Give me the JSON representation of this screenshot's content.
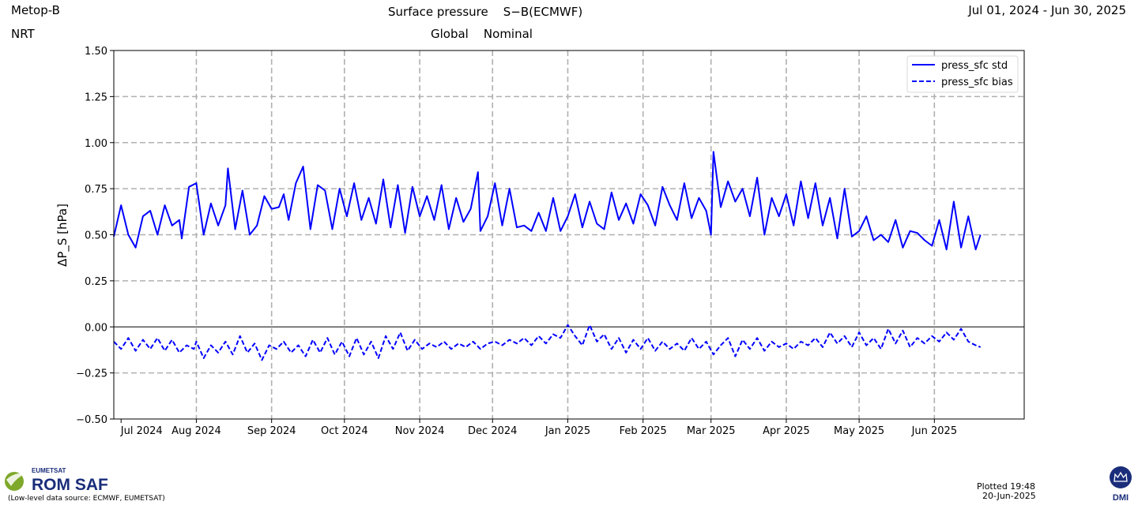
{
  "header": {
    "satellite": "Metop-B",
    "mode": "NRT",
    "title": "Surface pressure    S−B(ECMWF)",
    "subtitle": "Global    Nominal",
    "date_range": "Jul 01, 2024 - Jun 30, 2025"
  },
  "footer": {
    "org_small": "EUMETSAT",
    "org_name": "ROM SAF",
    "source_note": "(Low-level data source: ECMWF, EUMETSAT)",
    "plotted_line1": "Plotted 19:48",
    "plotted_line2": "20-Jun-2025",
    "dmi_label": "DMI"
  },
  "colors": {
    "series": "#0000ff",
    "grid": "#b0b0b0",
    "zero_line": "#000000",
    "logo_green": "#7ea82a",
    "logo_blue": "#1a2d7a"
  },
  "chart_data": {
    "type": "line",
    "ylabel": "ΔP_S  [hPa]",
    "ylim": [
      -0.5,
      1.5
    ],
    "yticks": [
      -0.5,
      -0.25,
      0.0,
      0.25,
      0.5,
      0.75,
      1.0,
      1.25,
      1.5
    ],
    "ytick_labels": [
      "−0.50",
      "−0.25",
      "0.00",
      "0.25",
      "0.50",
      "0.75",
      "1.00",
      "1.25",
      "1.50"
    ],
    "xlim": [
      "2024-06-28",
      "2025-07-08"
    ],
    "xticks": [
      "2024-07-01",
      "2024-08-01",
      "2024-09-01",
      "2024-10-01",
      "2024-11-01",
      "2024-12-01",
      "2025-01-01",
      "2025-02-01",
      "2025-03-01",
      "2025-04-01",
      "2025-05-01",
      "2025-06-01"
    ],
    "xtick_labels": [
      "Jul 2024",
      "Aug 2024",
      "Sep 2024",
      "Oct 2024",
      "Nov 2024",
      "Dec 2024",
      "Jan 2025",
      "Feb 2025",
      "Mar 2025",
      "Apr 2025",
      "May 2025",
      "Jun 2025"
    ],
    "grid": true,
    "zero_line": true,
    "legend_position": "top-right",
    "series": [
      {
        "name": "press_sfc std",
        "style": "solid",
        "x": [
          "2024-06-28",
          "2024-07-01",
          "2024-07-04",
          "2024-07-07",
          "2024-07-10",
          "2024-07-13",
          "2024-07-16",
          "2024-07-19",
          "2024-07-22",
          "2024-07-25",
          "2024-07-26",
          "2024-07-29",
          "2024-08-01",
          "2024-08-04",
          "2024-08-07",
          "2024-08-10",
          "2024-08-13",
          "2024-08-14",
          "2024-08-17",
          "2024-08-20",
          "2024-08-23",
          "2024-08-26",
          "2024-08-29",
          "2024-09-01",
          "2024-09-04",
          "2024-09-06",
          "2024-09-08",
          "2024-09-11",
          "2024-09-14",
          "2024-09-17",
          "2024-09-20",
          "2024-09-23",
          "2024-09-26",
          "2024-09-29",
          "2024-10-02",
          "2024-10-05",
          "2024-10-08",
          "2024-10-11",
          "2024-10-14",
          "2024-10-17",
          "2024-10-20",
          "2024-10-23",
          "2024-10-26",
          "2024-10-29",
          "2024-11-01",
          "2024-11-04",
          "2024-11-07",
          "2024-11-10",
          "2024-11-13",
          "2024-11-16",
          "2024-11-19",
          "2024-11-22",
          "2024-11-25",
          "2024-11-26",
          "2024-11-29",
          "2024-12-02",
          "2024-12-05",
          "2024-12-08",
          "2024-12-11",
          "2024-12-14",
          "2024-12-17",
          "2024-12-20",
          "2024-12-23",
          "2024-12-26",
          "2024-12-29",
          "2025-01-01",
          "2025-01-04",
          "2025-01-07",
          "2025-01-10",
          "2025-01-13",
          "2025-01-16",
          "2025-01-19",
          "2025-01-22",
          "2025-01-25",
          "2025-01-28",
          "2025-01-31",
          "2025-02-03",
          "2025-02-06",
          "2025-02-09",
          "2025-02-12",
          "2025-02-15",
          "2025-02-18",
          "2025-02-21",
          "2025-02-24",
          "2025-02-27",
          "2025-03-01",
          "2025-03-02",
          "2025-03-05",
          "2025-03-08",
          "2025-03-11",
          "2025-03-14",
          "2025-03-17",
          "2025-03-20",
          "2025-03-23",
          "2025-03-26",
          "2025-03-29",
          "2025-04-01",
          "2025-04-04",
          "2025-04-07",
          "2025-04-10",
          "2025-04-13",
          "2025-04-16",
          "2025-04-19",
          "2025-04-22",
          "2025-04-25",
          "2025-04-28",
          "2025-05-01",
          "2025-05-04",
          "2025-05-07",
          "2025-05-10",
          "2025-05-13",
          "2025-05-16",
          "2025-05-19",
          "2025-05-22",
          "2025-05-25",
          "2025-05-28",
          "2025-05-31",
          "2025-06-03",
          "2025-06-06",
          "2025-06-09",
          "2025-06-12",
          "2025-06-15",
          "2025-06-18",
          "2025-06-20"
        ],
        "values": [
          0.49,
          0.66,
          0.5,
          0.43,
          0.6,
          0.63,
          0.5,
          0.66,
          0.55,
          0.58,
          0.48,
          0.76,
          0.78,
          0.5,
          0.67,
          0.55,
          0.66,
          0.86,
          0.53,
          0.74,
          0.5,
          0.55,
          0.71,
          0.64,
          0.65,
          0.72,
          0.58,
          0.78,
          0.87,
          0.53,
          0.77,
          0.74,
          0.53,
          0.75,
          0.6,
          0.78,
          0.58,
          0.7,
          0.56,
          0.8,
          0.54,
          0.77,
          0.51,
          0.76,
          0.6,
          0.71,
          0.58,
          0.77,
          0.53,
          0.7,
          0.57,
          0.64,
          0.84,
          0.52,
          0.6,
          0.78,
          0.55,
          0.75,
          0.54,
          0.55,
          0.52,
          0.62,
          0.52,
          0.7,
          0.52,
          0.6,
          0.72,
          0.54,
          0.68,
          0.56,
          0.53,
          0.73,
          0.58,
          0.67,
          0.56,
          0.72,
          0.66,
          0.55,
          0.76,
          0.66,
          0.58,
          0.78,
          0.59,
          0.7,
          0.63,
          0.5,
          0.95,
          0.65,
          0.79,
          0.68,
          0.75,
          0.6,
          0.81,
          0.5,
          0.7,
          0.6,
          0.72,
          0.55,
          0.79,
          0.59,
          0.78,
          0.55,
          0.7,
          0.48,
          0.75,
          0.49,
          0.52,
          0.6,
          0.47,
          0.5,
          0.46,
          0.58,
          0.43,
          0.52,
          0.51,
          0.47,
          0.44,
          0.58,
          0.42,
          0.68,
          0.43,
          0.6,
          0.42,
          0.5
        ]
      },
      {
        "name": "press_sfc bias",
        "style": "dashed",
        "x": [
          "2024-06-28",
          "2024-07-01",
          "2024-07-04",
          "2024-07-07",
          "2024-07-10",
          "2024-07-13",
          "2024-07-16",
          "2024-07-19",
          "2024-07-22",
          "2024-07-25",
          "2024-07-28",
          "2024-07-31",
          "2024-08-01",
          "2024-08-04",
          "2024-08-07",
          "2024-08-10",
          "2024-08-13",
          "2024-08-16",
          "2024-08-19",
          "2024-08-22",
          "2024-08-25",
          "2024-08-28",
          "2024-08-31",
          "2024-09-03",
          "2024-09-06",
          "2024-09-09",
          "2024-09-12",
          "2024-09-15",
          "2024-09-18",
          "2024-09-21",
          "2024-09-24",
          "2024-09-27",
          "2024-09-30",
          "2024-10-03",
          "2024-10-06",
          "2024-10-09",
          "2024-10-12",
          "2024-10-15",
          "2024-10-18",
          "2024-10-21",
          "2024-10-24",
          "2024-10-27",
          "2024-10-30",
          "2024-11-02",
          "2024-11-05",
          "2024-11-08",
          "2024-11-11",
          "2024-11-14",
          "2024-11-17",
          "2024-11-20",
          "2024-11-23",
          "2024-11-26",
          "2024-11-29",
          "2024-12-02",
          "2024-12-05",
          "2024-12-08",
          "2024-12-11",
          "2024-12-14",
          "2024-12-17",
          "2024-12-20",
          "2024-12-23",
          "2024-12-26",
          "2024-12-29",
          "2025-01-01",
          "2025-01-04",
          "2025-01-07",
          "2025-01-10",
          "2025-01-13",
          "2025-01-16",
          "2025-01-19",
          "2025-01-22",
          "2025-01-25",
          "2025-01-28",
          "2025-01-31",
          "2025-02-03",
          "2025-02-06",
          "2025-02-09",
          "2025-02-12",
          "2025-02-15",
          "2025-02-18",
          "2025-02-21",
          "2025-02-24",
          "2025-02-27",
          "2025-03-02",
          "2025-03-05",
          "2025-03-08",
          "2025-03-11",
          "2025-03-14",
          "2025-03-17",
          "2025-03-20",
          "2025-03-23",
          "2025-03-26",
          "2025-03-29",
          "2025-04-01",
          "2025-04-04",
          "2025-04-07",
          "2025-04-10",
          "2025-04-13",
          "2025-04-16",
          "2025-04-19",
          "2025-04-22",
          "2025-04-25",
          "2025-04-28",
          "2025-05-01",
          "2025-05-04",
          "2025-05-07",
          "2025-05-10",
          "2025-05-13",
          "2025-05-16",
          "2025-05-19",
          "2025-05-22",
          "2025-05-25",
          "2025-05-28",
          "2025-05-31",
          "2025-06-03",
          "2025-06-06",
          "2025-06-09",
          "2025-06-12",
          "2025-06-15",
          "2025-06-18",
          "2025-06-20"
        ],
        "values": [
          -0.08,
          -0.12,
          -0.06,
          -0.13,
          -0.07,
          -0.12,
          -0.06,
          -0.13,
          -0.07,
          -0.14,
          -0.1,
          -0.12,
          -0.08,
          -0.17,
          -0.1,
          -0.14,
          -0.08,
          -0.15,
          -0.05,
          -0.14,
          -0.09,
          -0.18,
          -0.1,
          -0.12,
          -0.08,
          -0.14,
          -0.1,
          -0.16,
          -0.07,
          -0.14,
          -0.06,
          -0.15,
          -0.08,
          -0.16,
          -0.06,
          -0.15,
          -0.08,
          -0.17,
          -0.05,
          -0.12,
          -0.03,
          -0.13,
          -0.07,
          -0.12,
          -0.09,
          -0.11,
          -0.08,
          -0.12,
          -0.09,
          -0.11,
          -0.08,
          -0.12,
          -0.09,
          -0.08,
          -0.1,
          -0.07,
          -0.09,
          -0.06,
          -0.1,
          -0.05,
          -0.09,
          -0.04,
          -0.06,
          0.01,
          -0.05,
          -0.1,
          0.01,
          -0.08,
          -0.04,
          -0.12,
          -0.06,
          -0.14,
          -0.07,
          -0.12,
          -0.06,
          -0.13,
          -0.08,
          -0.12,
          -0.09,
          -0.13,
          -0.06,
          -0.12,
          -0.08,
          -0.15,
          -0.1,
          -0.06,
          -0.16,
          -0.07,
          -0.12,
          -0.06,
          -0.13,
          -0.08,
          -0.11,
          -0.09,
          -0.12,
          -0.08,
          -0.1,
          -0.06,
          -0.11,
          -0.03,
          -0.09,
          -0.05,
          -0.11,
          -0.03,
          -0.1,
          -0.06,
          -0.12,
          -0.01,
          -0.09,
          -0.02,
          -0.11,
          -0.06,
          -0.09,
          -0.05,
          -0.08,
          -0.03,
          -0.07,
          -0.01,
          -0.08,
          -0.1,
          -0.11
        ]
      }
    ]
  }
}
